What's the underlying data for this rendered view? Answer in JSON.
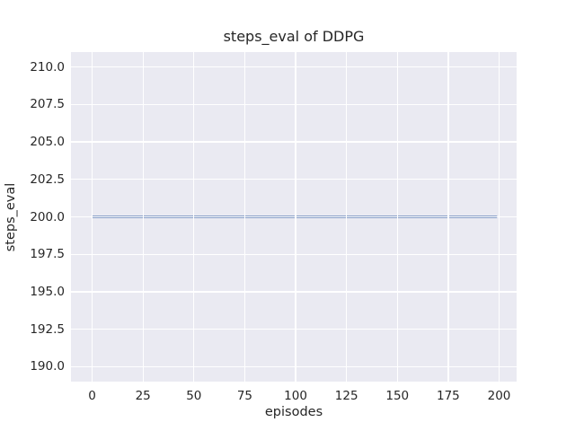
{
  "figure": {
    "background": "#ffffff",
    "axes_background": "#eaeaf2",
    "grid_color": "#ffffff",
    "text_color": "#262626"
  },
  "chart_data": {
    "type": "line",
    "title": "steps_eval of DDPG",
    "xlabel": "episodes",
    "ylabel": "steps_eval",
    "grid": true,
    "legend": false,
    "xlim": [
      -10.4,
      208.6
    ],
    "ylim": [
      189.0,
      211.0
    ],
    "xticks": [
      0,
      25,
      50,
      75,
      100,
      125,
      150,
      175,
      200
    ],
    "xtick_labels": [
      "0",
      "25",
      "50",
      "75",
      "100",
      "125",
      "150",
      "175",
      "200"
    ],
    "yticks": [
      190,
      192.5,
      195,
      197.5,
      200,
      202.5,
      205,
      207.5,
      210
    ],
    "ytick_labels": [
      "190.0",
      "192.5",
      "195.0",
      "197.5",
      "200.0",
      "202.5",
      "205.0",
      "207.5",
      "210.0"
    ],
    "series": [
      {
        "name": "DDPG",
        "color": "#4c72b0",
        "line_width": 2.2,
        "x": [
          0,
          199
        ],
        "y": [
          200,
          200
        ]
      }
    ]
  }
}
